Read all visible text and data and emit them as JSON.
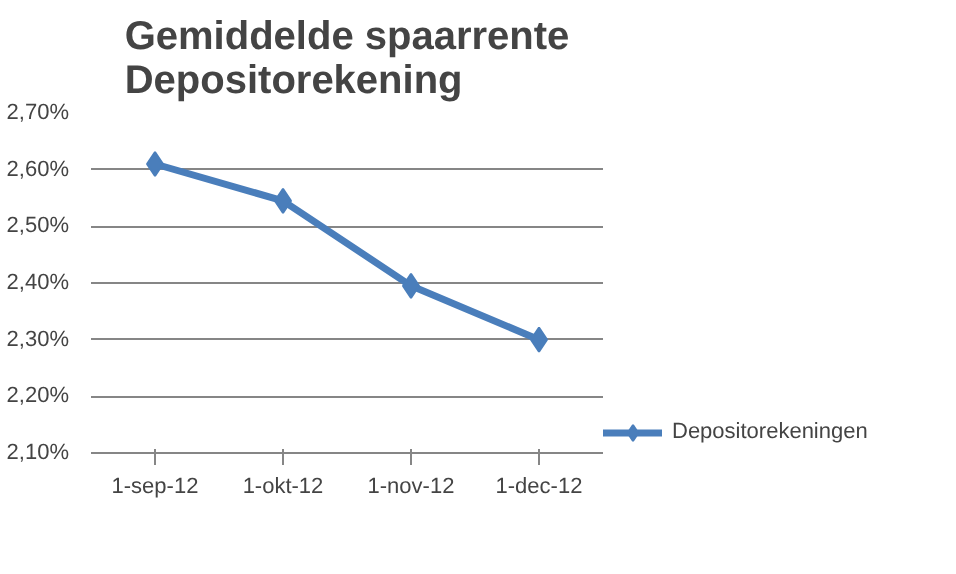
{
  "chart_data": {
    "type": "line",
    "title": "Gemiddelde spaarrente\nDepositorekening",
    "categories": [
      "1-sep-12",
      "1-okt-12",
      "1-nov-12",
      "1-dec-12"
    ],
    "series": [
      {
        "name": "Depositorekeningen",
        "color": "#4a7ebb",
        "values": [
          2.61,
          2.545,
          2.395,
          2.3
        ]
      }
    ],
    "ylim": [
      2.1,
      2.7
    ],
    "yticks": [
      {
        "value": 2.1,
        "label": "2,10%"
      },
      {
        "value": 2.2,
        "label": "2,20%"
      },
      {
        "value": 2.3,
        "label": "2,30%"
      },
      {
        "value": 2.4,
        "label": "2,40%"
      },
      {
        "value": 2.5,
        "label": "2,50%"
      },
      {
        "value": 2.6,
        "label": "2,60%"
      },
      {
        "value": 2.7,
        "label": "2,70%"
      }
    ],
    "grid": "y",
    "legend": "right",
    "marker": "diamond",
    "line_style": "solid"
  }
}
